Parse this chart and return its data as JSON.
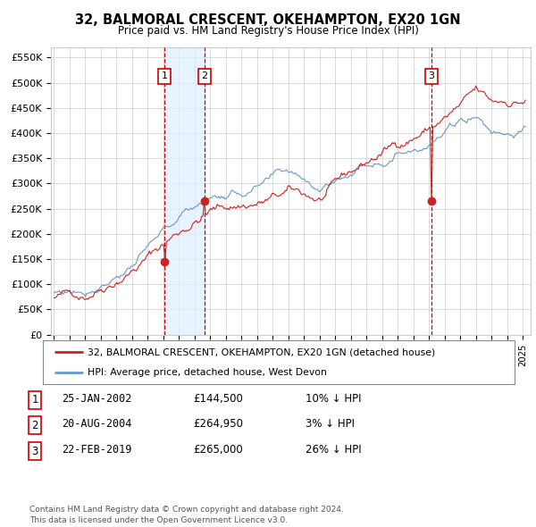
{
  "title": "32, BALMORAL CRESCENT, OKEHAMPTON, EX20 1GN",
  "subtitle": "Price paid vs. HM Land Registry's House Price Index (HPI)",
  "ylim": [
    0,
    570000
  ],
  "yticks": [
    0,
    50000,
    100000,
    150000,
    200000,
    250000,
    300000,
    350000,
    400000,
    450000,
    500000,
    550000
  ],
  "ytick_labels": [
    "£0",
    "£50K",
    "£100K",
    "£150K",
    "£200K",
    "£250K",
    "£300K",
    "£350K",
    "£400K",
    "£450K",
    "£500K",
    "£550K"
  ],
  "sale_dates_float": [
    2002.07,
    2004.63,
    2019.14
  ],
  "sale_prices": [
    144500,
    264950,
    265000
  ],
  "sale_labels": [
    "1",
    "2",
    "3"
  ],
  "vline_color": "#cc0000",
  "vshade_color_blue": "#ddeeff",
  "vshade_color_red": "#ffeeee",
  "hpi_line_color": "#6699cc",
  "price_line_color": "#cc2222",
  "legend_entries": [
    "32, BALMORAL CRESCENT, OKEHAMPTON, EX20 1GN (detached house)",
    "HPI: Average price, detached house, West Devon"
  ],
  "table_rows": [
    [
      "1",
      "25-JAN-2002",
      "£144,500",
      "10% ↓ HPI"
    ],
    [
      "2",
      "20-AUG-2004",
      "£264,950",
      "3% ↓ HPI"
    ],
    [
      "3",
      "22-FEB-2019",
      "£265,000",
      "26% ↓ HPI"
    ]
  ],
  "footer": "Contains HM Land Registry data © Crown copyright and database right 2024.\nThis data is licensed under the Open Government Licence v3.0.",
  "background_color": "#ffffff",
  "grid_color": "#cccccc",
  "xlim_left": 1994.8,
  "xlim_right": 2025.5
}
